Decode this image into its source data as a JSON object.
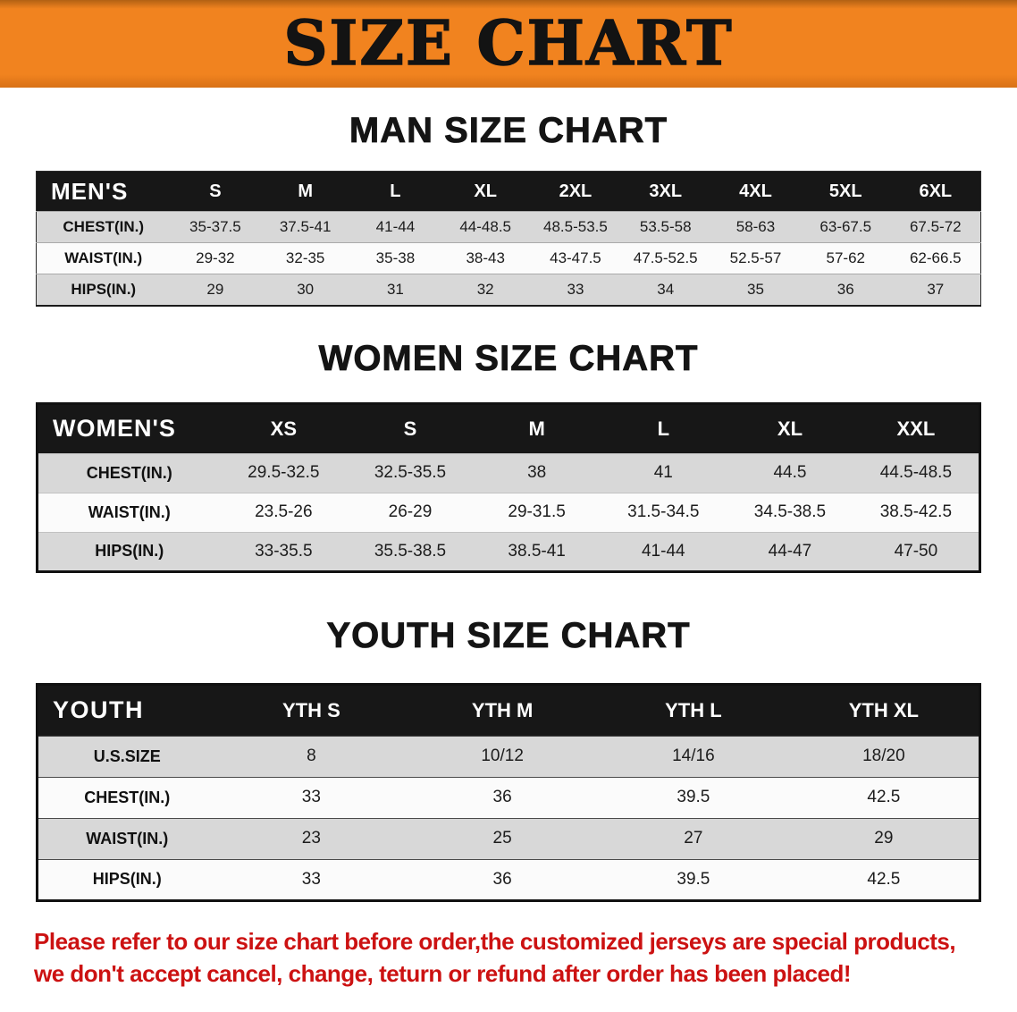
{
  "banner": {
    "title": "SIZE CHART",
    "bg_color": "#f1831f"
  },
  "sections": [
    {
      "heading": "MAN SIZE CHART",
      "table": {
        "label": "MEN'S",
        "columns": [
          "S",
          "M",
          "L",
          "XL",
          "2XL",
          "3XL",
          "4XL",
          "5XL",
          "6XL"
        ],
        "rows": [
          {
            "label": "CHEST(IN.)",
            "values": [
              "35-37.5",
              "37.5-41",
              "41-44",
              "44-48.5",
              "48.5-53.5",
              "53.5-58",
              "58-63",
              "63-67.5",
              "67.5-72"
            ]
          },
          {
            "label": "WAIST(IN.)",
            "values": [
              "29-32",
              "32-35",
              "35-38",
              "38-43",
              "43-47.5",
              "47.5-52.5",
              "52.5-57",
              "57-62",
              "62-66.5"
            ]
          },
          {
            "label": "HIPS(IN.)",
            "values": [
              "29",
              "30",
              "31",
              "32",
              "33",
              "34",
              "35",
              "36",
              "37"
            ]
          }
        ]
      }
    },
    {
      "heading": "WOMEN SIZE CHART",
      "table": {
        "label": "WOMEN'S",
        "columns": [
          "XS",
          "S",
          "M",
          "L",
          "XL",
          "XXL"
        ],
        "rows": [
          {
            "label": "CHEST(IN.)",
            "values": [
              "29.5-32.5",
              "32.5-35.5",
              "38",
              "41",
              "44.5",
              "44.5-48.5"
            ]
          },
          {
            "label": "WAIST(IN.)",
            "values": [
              "23.5-26",
              "26-29",
              "29-31.5",
              "31.5-34.5",
              "34.5-38.5",
              "38.5-42.5"
            ]
          },
          {
            "label": "HIPS(IN.)",
            "values": [
              "33-35.5",
              "35.5-38.5",
              "38.5-41",
              "41-44",
              "44-47",
              "47-50"
            ]
          }
        ]
      }
    },
    {
      "heading": "YOUTH SIZE CHART",
      "table": {
        "label": "YOUTH",
        "columns": [
          "YTH S",
          "YTH M",
          "YTH L",
          "YTH XL"
        ],
        "rows": [
          {
            "label": "U.S.SIZE",
            "values": [
              "8",
              "10/12",
              "14/16",
              "18/20"
            ]
          },
          {
            "label": "CHEST(IN.)",
            "values": [
              "33",
              "36",
              "39.5",
              "42.5"
            ]
          },
          {
            "label": "WAIST(IN.)",
            "values": [
              "23",
              "25",
              "27",
              "29"
            ]
          },
          {
            "label": "HIPS(IN.)",
            "values": [
              "33",
              "36",
              "39.5",
              "42.5"
            ]
          }
        ]
      }
    }
  ],
  "footer": {
    "line1": "Please refer to our size chart before order,the customized jerseys are special products,",
    "line2": "we don't accept cancel, change, teturn or refund after order has been placed!",
    "text_color": "#cc1212"
  }
}
